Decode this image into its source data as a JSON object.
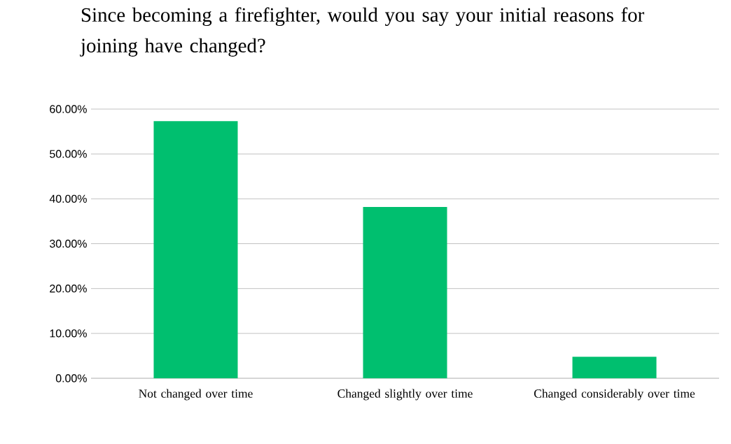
{
  "chart_data": {
    "type": "bar",
    "title": "Since becoming a firefighter, would you say your initial reasons for joining have changed?",
    "categories": [
      "Not changed over time",
      "Changed slightly over time",
      "Changed considerably over time"
    ],
    "values": [
      57.3,
      38.2,
      4.8
    ],
    "color": "#00bf6f",
    "ylim": [
      0,
      60
    ],
    "yticks": [
      {
        "value": 0,
        "label": "0.00%"
      },
      {
        "value": 10,
        "label": "10.00%"
      },
      {
        "value": 20,
        "label": "20.00%"
      },
      {
        "value": 30,
        "label": "30.00%"
      },
      {
        "value": 40,
        "label": "40.00%"
      },
      {
        "value": 50,
        "label": "50.00%"
      },
      {
        "value": 60,
        "label": "60.00%"
      }
    ],
    "grid": "y"
  }
}
